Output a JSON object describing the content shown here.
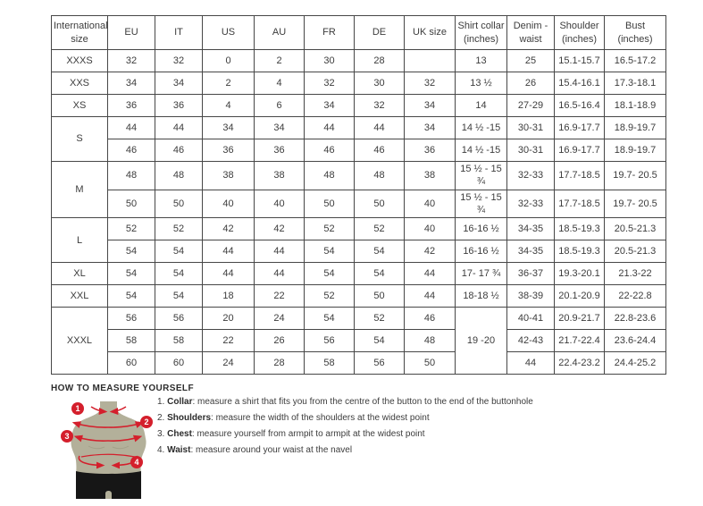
{
  "colors": {
    "accent_red": "#d41f2c",
    "mannequin_tan": "#b3b09a",
    "shorts_black": "#161616",
    "grid_border": "#474747",
    "text": "#3c3c3c"
  },
  "table": {
    "headers": [
      "International size",
      "EU",
      "IT",
      "US",
      "AU",
      "FR",
      "DE",
      "UK size",
      "Shirt collar (inches)",
      "Denim - waist",
      "Shoulder (inches)",
      "Bust (inches)"
    ],
    "rows": [
      [
        {
          "t": "XXXS"
        },
        "32",
        "32",
        "0",
        "2",
        "30",
        "28",
        "",
        "13",
        "25",
        "15.1-15.7",
        "16.5-17.2"
      ],
      [
        {
          "t": "XXS"
        },
        "34",
        "34",
        "2",
        "4",
        "32",
        "30",
        "32",
        "13 ½",
        "26",
        "15.4-16.1",
        "17.3-18.1"
      ],
      [
        {
          "t": "XS"
        },
        "36",
        "36",
        "4",
        "6",
        "34",
        "32",
        "34",
        "14",
        "27-29",
        "16.5-16.4",
        "18.1-18.9"
      ],
      [
        {
          "t": "S",
          "rs": 2
        },
        "44",
        "44",
        "34",
        "34",
        "44",
        "44",
        "34",
        "14 ½ -15",
        "30-31",
        "16.9-17.7",
        "18.9-19.7"
      ],
      [
        "46",
        "46",
        "36",
        "36",
        "46",
        "46",
        "36",
        "14 ½ -15",
        "30-31",
        "16.9-17.7",
        "18.9-19.7"
      ],
      [
        {
          "t": "M",
          "rs": 2
        },
        "48",
        "48",
        "38",
        "38",
        "48",
        "48",
        "38",
        "15 ½ - 15 ¾",
        "32-33",
        "17.7-18.5",
        "19.7- 20.5"
      ],
      [
        "50",
        "50",
        "40",
        "40",
        "50",
        "50",
        "40",
        "15 ½ - 15 ¾",
        "32-33",
        "17.7-18.5",
        "19.7- 20.5"
      ],
      [
        {
          "t": "L",
          "rs": 2
        },
        "52",
        "52",
        "42",
        "42",
        "52",
        "52",
        "40",
        "16-16 ½",
        "34-35",
        "18.5-19.3",
        "20.5-21.3"
      ],
      [
        "54",
        "54",
        "44",
        "44",
        "54",
        "54",
        "42",
        "16-16 ½",
        "34-35",
        "18.5-19.3",
        "20.5-21.3"
      ],
      [
        {
          "t": "XL"
        },
        "54",
        "54",
        "44",
        "44",
        "54",
        "54",
        "44",
        "17- 17 ¾",
        "36-37",
        "19.3-20.1",
        "21.3-22"
      ],
      [
        {
          "t": "XXL"
        },
        "54",
        "54",
        "18",
        "22",
        "52",
        "50",
        "44",
        "18-18 ½",
        "38-39",
        "20.1-20.9",
        "22-22.8"
      ],
      [
        {
          "t": "XXXL",
          "rs": 3
        },
        "56",
        "56",
        "20",
        "24",
        "54",
        "52",
        "46",
        {
          "t": "19 -20",
          "rs": 3
        },
        "40-41",
        "20.9-21.7",
        "22.8-23.6"
      ],
      [
        "58",
        "58",
        "22",
        "26",
        "56",
        "54",
        "48",
        "42-43",
        "21.7-22.4",
        "23.6-24.4"
      ],
      [
        "60",
        "60",
        "24",
        "28",
        "58",
        "56",
        "50",
        "44",
        "22.4-23.2",
        "24.4-25.2"
      ]
    ]
  },
  "measure": {
    "title": "HOW TO MEASURE YOURSELF",
    "steps": [
      {
        "num": "1.",
        "label": "Collar",
        "rest": ": measure a shirt that fits you from the centre of the button to the end of the buttonhole"
      },
      {
        "num": "2.",
        "label": "Shoulders",
        "rest": ": measure the width of the shoulders at the widest point"
      },
      {
        "num": "3.",
        "label": "Chest",
        "rest": ": measure yourself from armpit to armpit at the widest point"
      },
      {
        "num": "4.",
        "label": "Waist",
        "rest": ": measure around your waist at the navel"
      }
    ],
    "badges": [
      "1",
      "2",
      "3",
      "4"
    ]
  }
}
